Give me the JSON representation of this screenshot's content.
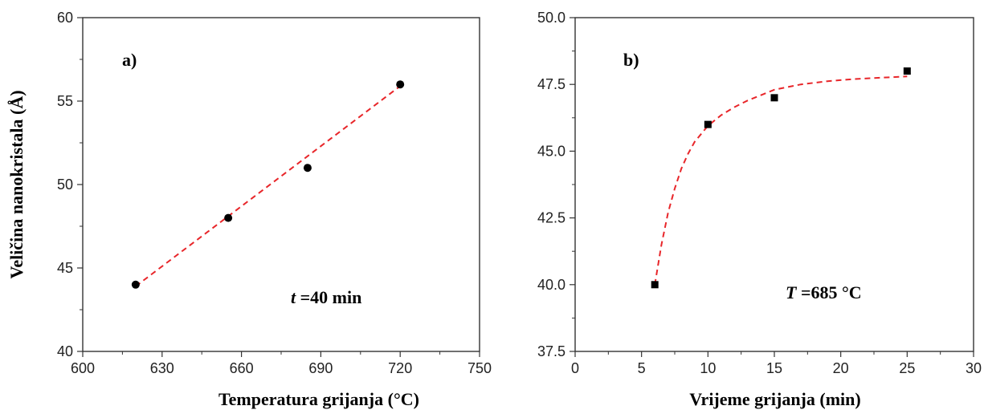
{
  "chart_data": [
    {
      "type": "scatter",
      "panel_label": "a)",
      "xlabel": "Temperatura grijanja (°C)",
      "ylabel": "Veličina nanokristala (Å)",
      "xlim": [
        600,
        750
      ],
      "ylim": [
        40,
        60
      ],
      "xticks": [
        "600",
        "630",
        "660",
        "690",
        "720",
        "750"
      ],
      "yticks": [
        "40",
        "45",
        "50",
        "55",
        "60"
      ],
      "grid": false,
      "marker": "circle",
      "series": [
        {
          "x": [
            620,
            655,
            685,
            720
          ],
          "y": [
            44,
            48,
            51,
            56
          ]
        }
      ],
      "fit": {
        "type": "linear",
        "x": [
          620,
          720
        ],
        "y": [
          43.9,
          55.9
        ],
        "color": "#e8262a",
        "style": "dashed"
      },
      "annotation": {
        "var": "t",
        "text": " =40 min"
      }
    },
    {
      "type": "scatter",
      "panel_label": "b)",
      "xlabel": "Vrijeme grijanja (min)",
      "ylabel": "",
      "xlim": [
        0,
        30
      ],
      "ylim": [
        37.5,
        50.0
      ],
      "xticks": [
        "0",
        "5",
        "10",
        "15",
        "20",
        "25",
        "30"
      ],
      "yticks": [
        "37.5",
        "40.0",
        "42.5",
        "45.0",
        "47.5",
        "50.0"
      ],
      "grid": false,
      "marker": "square",
      "series": [
        {
          "x": [
            6,
            10,
            15,
            25
          ],
          "y": [
            40,
            46,
            47,
            48
          ]
        }
      ],
      "fit": {
        "type": "curve",
        "x": [
          6.0,
          6.5,
          7.0,
          7.5,
          8.0,
          8.5,
          9.0,
          10.0,
          11.0,
          12.0,
          13.0,
          14.0,
          15.0,
          17.0,
          19.0,
          21.0,
          23.0,
          25.0
        ],
        "y": [
          40.0,
          41.5,
          42.7,
          43.6,
          44.35,
          44.9,
          45.35,
          45.95,
          46.35,
          46.65,
          46.9,
          47.1,
          47.3,
          47.5,
          47.62,
          47.7,
          47.75,
          47.8
        ],
        "color": "#e8262a",
        "style": "dashed"
      },
      "annotation": {
        "var": "T",
        "text": " =685 °C"
      }
    }
  ]
}
